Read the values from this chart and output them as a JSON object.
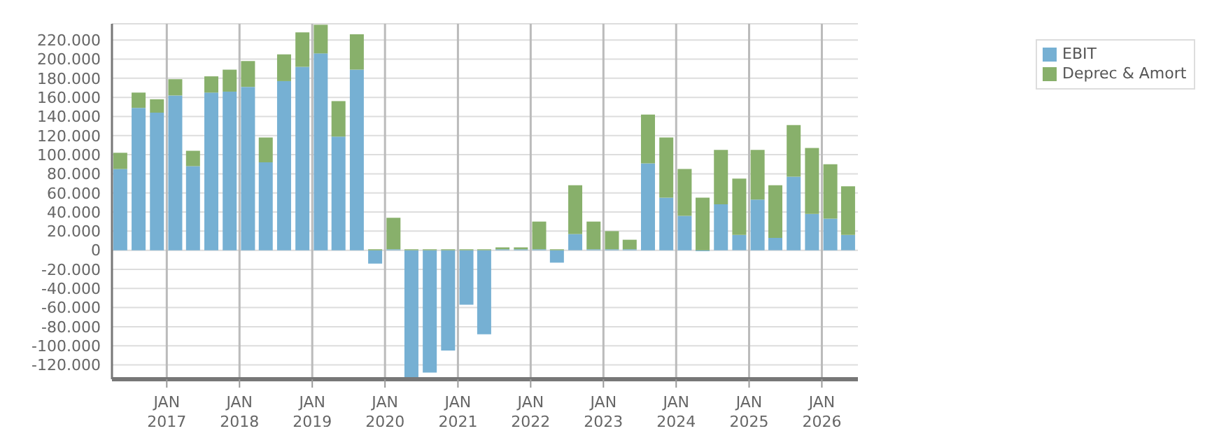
{
  "chart_data": {
    "type": "bar",
    "stacked": true,
    "x": [
      "2016-05-15",
      "2016-08-15",
      "2016-11-15",
      "2017-02-15",
      "2017-05-15",
      "2017-08-15",
      "2017-11-15",
      "2018-02-15",
      "2018-05-15",
      "2018-08-15",
      "2018-11-15",
      "2019-02-15",
      "2019-05-15",
      "2019-08-15",
      "2019-11-15",
      "2020-02-15",
      "2020-05-15",
      "2020-08-15",
      "2020-11-15",
      "2021-02-15",
      "2021-05-15",
      "2021-08-15",
      "2021-11-15",
      "2022-02-15",
      "2022-05-15",
      "2022-08-15",
      "2022-11-15",
      "2023-02-15",
      "2023-05-15",
      "2023-08-15",
      "2023-11-15",
      "2024-02-15",
      "2024-05-15",
      "2024-08-15",
      "2024-11-15",
      "2025-02-15",
      "2025-05-15",
      "2025-08-15",
      "2025-11-15",
      "2026-02-15",
      "2026-05-15"
    ],
    "series": [
      {
        "name": "EBIT",
        "color": "#76b0d3",
        "values": [
          85000,
          149000,
          144000,
          162000,
          88000,
          165000,
          166000,
          171000,
          92000,
          177000,
          192000,
          206000,
          119000,
          189000,
          -14000,
          1000,
          -135000,
          -128000,
          -105000,
          -57000,
          -88000,
          1000,
          1000,
          1000,
          -13000,
          17000,
          1000,
          1000,
          1000,
          91000,
          55000,
          36000,
          -1000,
          48000,
          16000,
          53000,
          13000,
          77000,
          38000,
          33000,
          16000
        ]
      },
      {
        "name": "Deprec & Amort",
        "color": "#88b06b",
        "values": [
          17000,
          16000,
          14000,
          17000,
          16000,
          17000,
          23000,
          27000,
          26000,
          28000,
          36000,
          30000,
          37000,
          37000,
          1000,
          33000,
          1000,
          1000,
          1000,
          1000,
          1000,
          2000,
          2000,
          29000,
          1000,
          51000,
          29000,
          19000,
          10000,
          51000,
          63000,
          49000,
          55000,
          57000,
          59000,
          52000,
          55000,
          54000,
          69000,
          57000,
          51000
        ]
      }
    ],
    "xlim": [
      "2016-04-01",
      "2026-07-01"
    ],
    "xticks": [
      {
        "value": "2017-01",
        "label": "JAN 2017"
      },
      {
        "value": "2018-01",
        "label": "JAN 2018"
      },
      {
        "value": "2019-01",
        "label": "JAN 2019"
      },
      {
        "value": "2020-01",
        "label": "JAN 2020"
      },
      {
        "value": "2021-01",
        "label": "JAN 2021"
      },
      {
        "value": "2022-01",
        "label": "JAN 2022"
      },
      {
        "value": "2023-01",
        "label": "JAN 2023"
      },
      {
        "value": "2024-01",
        "label": "JAN 2024"
      },
      {
        "value": "2025-01",
        "label": "JAN 2025"
      },
      {
        "value": "2026-01",
        "label": "JAN 2026"
      }
    ],
    "ylim": [
      -135000,
      237000
    ],
    "yticks": [
      {
        "value": -120000,
        "label": "-120.000"
      },
      {
        "value": -100000,
        "label": "-100.000"
      },
      {
        "value": -80000,
        "label": "-80.000"
      },
      {
        "value": -60000,
        "label": "-60.000"
      },
      {
        "value": -40000,
        "label": "-40.000"
      },
      {
        "value": -20000,
        "label": "-20.000"
      },
      {
        "value": 0,
        "label": "0"
      },
      {
        "value": 20000,
        "label": "20.000"
      },
      {
        "value": 40000,
        "label": "40.000"
      },
      {
        "value": 60000,
        "label": "60.000"
      },
      {
        "value": 80000,
        "label": "80.000"
      },
      {
        "value": 100000,
        "label": "100.000"
      },
      {
        "value": 120000,
        "label": "120.000"
      },
      {
        "value": 140000,
        "label": "140.000"
      },
      {
        "value": 160000,
        "label": "160.000"
      },
      {
        "value": 180000,
        "label": "180.000"
      },
      {
        "value": 200000,
        "label": "200.000"
      },
      {
        "value": 220000,
        "label": "220.000"
      }
    ],
    "grid": true,
    "legend": "top right"
  }
}
